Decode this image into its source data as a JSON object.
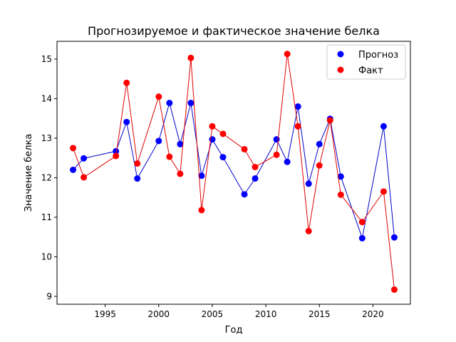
{
  "chart_data": {
    "type": "line",
    "title": "Прогнозируемое и фактическое значение белка",
    "xlabel": "Год",
    "ylabel": "Значение белка",
    "xlim": [
      1990.5,
      2023.5
    ],
    "ylim": [
      8.8,
      15.45
    ],
    "xticks": [
      1995,
      2000,
      2005,
      2010,
      2015,
      2020
    ],
    "yticks": [
      9,
      10,
      11,
      12,
      13,
      14,
      15
    ],
    "grid": false,
    "legend_position": "top-right",
    "series": [
      {
        "name": "Прогноз",
        "color": "#0000ff",
        "line_color": "#0000cc",
        "x": [
          1992,
          1993,
          1996,
          1997,
          1998,
          2000,
          2001,
          2002,
          2003,
          2004,
          2005,
          2006,
          2008,
          2009,
          2011,
          2012,
          2013,
          2014,
          2015,
          2016,
          2017,
          2019,
          2021,
          2022
        ],
        "y": [
          12.2,
          12.49,
          12.67,
          13.41,
          11.98,
          12.93,
          13.89,
          12.85,
          13.89,
          12.05,
          12.97,
          12.52,
          11.58,
          11.98,
          12.97,
          12.4,
          13.8,
          11.85,
          12.85,
          13.49,
          12.03,
          10.47,
          13.3,
          10.49
        ]
      },
      {
        "name": "Факт",
        "color": "#ff0000",
        "line_color": "#e00000",
        "x": [
          1992,
          1993,
          1996,
          1997,
          1998,
          2000,
          2001,
          2002,
          2003,
          2004,
          2005,
          2006,
          2008,
          2009,
          2011,
          2012,
          2013,
          2014,
          2015,
          2016,
          2017,
          2019,
          2021,
          2022
        ],
        "y": [
          12.75,
          12.01,
          12.55,
          14.4,
          12.36,
          14.05,
          12.53,
          12.1,
          15.03,
          11.18,
          13.3,
          13.11,
          12.72,
          12.27,
          12.58,
          15.13,
          13.3,
          10.65,
          12.31,
          13.45,
          11.57,
          10.88,
          11.65,
          9.17
        ]
      }
    ]
  }
}
